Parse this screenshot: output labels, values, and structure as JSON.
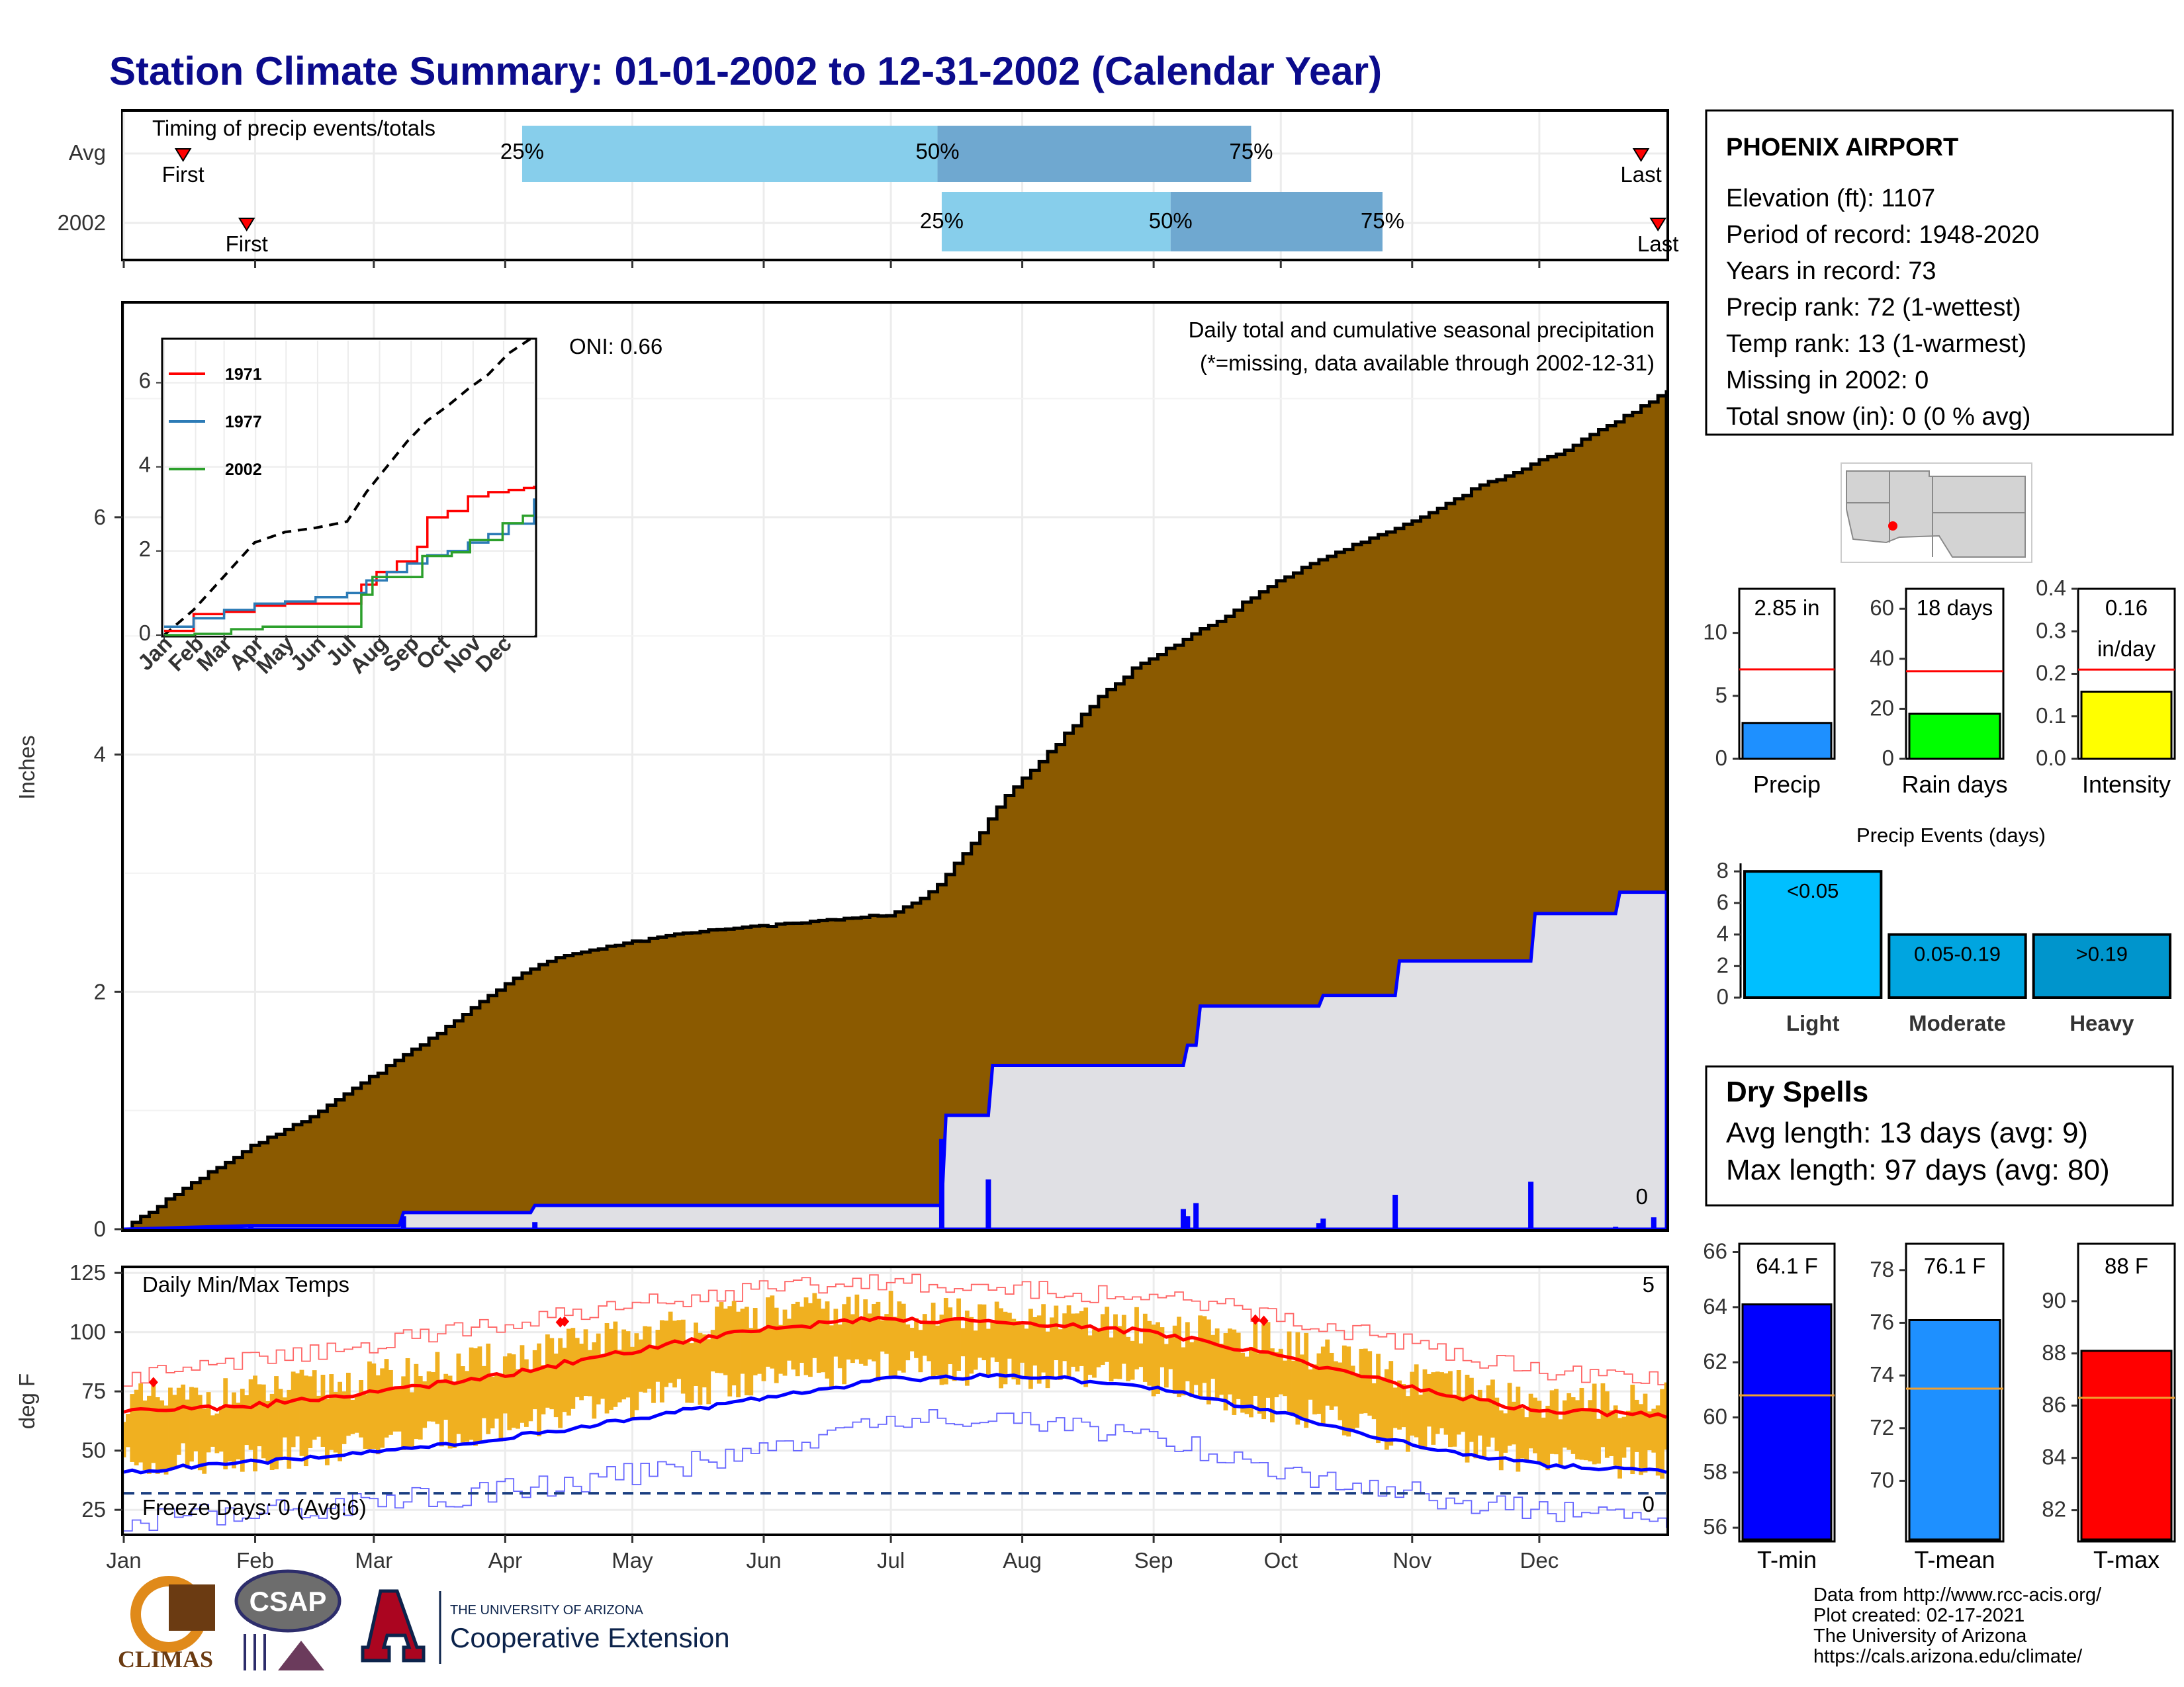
{
  "title": "Station Climate Summary: 01-01-2002 to 12-31-2002 (Calendar Year)",
  "colors": {
    "title": "#0b0b8c",
    "cum": "#8b5a00",
    "avgcum": "#e0e0e4",
    "daily": "#0000ff",
    "q1": "#87ceeb",
    "q2": "#6fa8d0",
    "red": "#ff0000",
    "yellow": "#f0b020",
    "tmin": "#0000ff",
    "tmean": "#1e90ff",
    "tmax": "#ff0000",
    "rain": "#00ff00",
    "intensity": "#ffff00",
    "precip": "#1e90ff",
    "events": [
      "#00bfff",
      "#00a5e0",
      "#0095cc"
    ],
    "dry": "#a52a2a"
  },
  "months": [
    "Jan",
    "Feb",
    "Mar",
    "Apr",
    "May",
    "Jun",
    "Jul",
    "Aug",
    "Sep",
    "Oct",
    "Nov",
    "Dec"
  ],
  "timing": {
    "label": "Timing of precip events/totals",
    "rows": [
      "Avg",
      "2002"
    ],
    "pct_labels": [
      "25%",
      "50%",
      "75%"
    ],
    "first_label": "First",
    "last_label": "Last",
    "chart_data": {
      "type": "table",
      "x_unit": "day of year",
      "series": [
        {
          "name": "Avg",
          "first": 15,
          "p25": 95,
          "p50": 193,
          "p75": 267,
          "last": 359
        },
        {
          "name": "2002",
          "first": 30,
          "p25": 194,
          "p50": 248,
          "p75": 298,
          "last": 363
        }
      ]
    }
  },
  "precip": {
    "title": "Daily total and cumulative seasonal precipitation",
    "missing_note": "(*=missing, data available through 2002-12-31)",
    "ylabel": "Inches",
    "oni": "ONI: 0.66",
    "zero_count": "0",
    "chart_data": {
      "type": "area",
      "ylim": [
        0,
        7.8
      ],
      "yticks": [
        0,
        2,
        4,
        6
      ],
      "avg_cumulative": {
        "name": "Avg",
        "x": [
          1,
          15,
          31,
          45,
          60,
          75,
          90,
          100,
          110,
          120,
          135,
          150,
          165,
          181,
          190,
          194,
          200,
          210,
          220,
          230,
          240,
          250,
          260,
          270,
          280,
          290,
          300,
          310,
          320,
          330,
          340,
          350,
          360,
          365
        ],
        "y": [
          0,
          0.35,
          0.7,
          0.95,
          1.3,
          1.65,
          2.05,
          2.25,
          2.35,
          2.42,
          2.5,
          2.55,
          2.6,
          2.65,
          2.8,
          2.95,
          3.2,
          3.7,
          4.05,
          4.45,
          4.75,
          4.95,
          5.15,
          5.4,
          5.6,
          5.75,
          5.9,
          6.05,
          6.25,
          6.4,
          6.55,
          6.75,
          6.95,
          7.08
        ]
      },
      "cumulative_2002": {
        "name": "2002",
        "x": [
          1,
          31,
          66,
          67,
          97,
          98,
          194,
          195,
          205,
          206,
          251,
          252,
          254,
          255,
          283,
          284,
          301,
          302,
          333,
          334,
          353,
          354,
          365
        ],
        "y": [
          0,
          0.03,
          0.03,
          0.14,
          0.14,
          0.2,
          0.2,
          0.96,
          0.96,
          1.38,
          1.38,
          1.55,
          1.55,
          1.88,
          1.88,
          1.97,
          1.97,
          2.26,
          2.26,
          2.66,
          2.66,
          2.84,
          2.84
        ]
      },
      "daily_2002": {
        "name": "2002 daily",
        "x": [
          31,
          67,
          98,
          194,
          205,
          251,
          252,
          254,
          283,
          284,
          301,
          333,
          353,
          362
        ],
        "y": [
          0.03,
          0.11,
          0.06,
          0.76,
          0.42,
          0.17,
          0.11,
          0.22,
          0.05,
          0.09,
          0.29,
          0.4,
          0.02,
          0.1
        ]
      }
    },
    "inset": {
      "series_labels": [
        "1971",
        "1977",
        "2002"
      ],
      "series_colors": [
        "#ff0000",
        "#2c7bb6",
        "#2ca02c"
      ],
      "month_labels": [
        "Jan",
        "Feb",
        "Mar",
        "Apr",
        "May",
        "Jun",
        "Jul",
        "Aug",
        "Sep",
        "Oct",
        "Nov",
        "Dec"
      ],
      "chart_data": {
        "type": "line",
        "ylim": [
          0,
          7
        ],
        "yticks": [
          0,
          2,
          4,
          6
        ],
        "x_unit": "day of year",
        "series": [
          {
            "name": "Avg (dashed)",
            "x": [
              1,
              30,
              60,
              90,
              120,
              150,
              181,
              200,
              220,
              240,
              260,
              280,
              300,
              320,
              340,
              365
            ],
            "y": [
              0,
              0.6,
              1.4,
              2.2,
              2.45,
              2.55,
              2.7,
              3.4,
              4.0,
              4.6,
              5.1,
              5.45,
              5.85,
              6.2,
              6.7,
              7.1
            ]
          },
          {
            "name": "1971",
            "x": [
              1,
              30,
              60,
              90,
              120,
              150,
              181,
              195,
              210,
              230,
              250,
              260,
              280,
              300,
              320,
              340,
              355,
              365
            ],
            "y": [
              0.1,
              0.5,
              0.55,
              0.7,
              0.75,
              0.75,
              0.75,
              1.2,
              1.5,
              1.75,
              2.1,
              2.8,
              2.95,
              3.3,
              3.4,
              3.45,
              3.5,
              3.55
            ]
          },
          {
            "name": "1977",
            "x": [
              1,
              30,
              60,
              90,
              120,
              150,
              181,
              200,
              220,
              240,
              260,
              280,
              300,
              320,
              340,
              365
            ],
            "y": [
              0.2,
              0.4,
              0.6,
              0.75,
              0.8,
              0.9,
              1.0,
              1.3,
              1.5,
              1.7,
              1.9,
              2.0,
              2.2,
              2.4,
              2.65,
              3.25
            ]
          },
          {
            "name": "2002",
            "x": [
              1,
              31,
              66,
              67,
              97,
              98,
              194,
              195,
              205,
              206,
              251,
              255,
              284,
              302,
              334,
              354,
              365
            ],
            "y": [
              0,
              0.03,
              0.03,
              0.14,
              0.14,
              0.2,
              0.2,
              0.96,
              0.96,
              1.38,
              1.38,
              1.88,
              1.97,
              2.26,
              2.66,
              2.84,
              2.84
            ]
          }
        ]
      }
    }
  },
  "temps": {
    "label": "Daily Min/Max Temps",
    "ylabel": "deg F",
    "record_hi_count": "5",
    "record_lo_count": "0",
    "freeze": "Freeze Days: 0 (Avg:6)",
    "chart_data": {
      "type": "line",
      "ylim": [
        15,
        127
      ],
      "yticks": [
        25,
        50,
        75,
        100,
        125
      ],
      "freeze_line": 32,
      "x_unit": "day of year",
      "avg_max": {
        "x": [
          1,
          31,
          59,
          90,
          120,
          151,
          181,
          212,
          243,
          273,
          304,
          334,
          365
        ],
        "y": [
          66,
          69,
          74,
          82,
          92,
          101,
          106,
          104,
          100,
          90,
          77,
          67,
          65
        ]
      },
      "avg_min": {
        "x": [
          1,
          31,
          59,
          90,
          120,
          151,
          181,
          212,
          243,
          273,
          304,
          334,
          365
        ],
        "y": [
          41,
          45,
          49,
          55,
          63,
          72,
          80,
          82,
          77,
          66,
          53,
          44,
          41
        ]
      },
      "record_high": {
        "x": [
          1,
          31,
          59,
          90,
          120,
          151,
          181,
          212,
          243,
          273,
          304,
          334,
          365
        ],
        "y": [
          80,
          88,
          95,
          103,
          112,
          118,
          122,
          118,
          115,
          107,
          95,
          84,
          80
        ]
      },
      "record_low": {
        "x": [
          1,
          31,
          59,
          90,
          120,
          151,
          181,
          212,
          243,
          273,
          304,
          334,
          365
        ],
        "y": [
          20,
          24,
          28,
          33,
          40,
          50,
          62,
          64,
          56,
          42,
          32,
          24,
          22
        ]
      },
      "obs_max": {
        "x": [
          1,
          31,
          59,
          90,
          120,
          151,
          181,
          212,
          243,
          273,
          304,
          334,
          365
        ],
        "y": [
          70,
          74,
          80,
          88,
          99,
          108,
          110,
          105,
          103,
          96,
          80,
          70,
          72
        ]
      },
      "obs_min": {
        "x": [
          1,
          31,
          59,
          90,
          120,
          151,
          181,
          212,
          243,
          273,
          304,
          334,
          365
        ],
        "y": [
          45,
          48,
          52,
          60,
          70,
          80,
          86,
          82,
          80,
          68,
          55,
          46,
          44
        ]
      },
      "record_days": [
        8,
        104,
        105,
        268,
        270
      ]
    }
  },
  "station": {
    "name": "PHOENIX AIRPORT",
    "lines": [
      "Elevation (ft): 1107",
      "Period of record: 1948-2020",
      "Years in record: 73",
      "Precip rank: 72 (1-wettest)",
      "Temp rank: 13 (1-warmest)",
      "Missing in 2002: 0",
      "Total snow (in): 0 (0 % avg)"
    ]
  },
  "mini": {
    "precip": {
      "label": "Precip",
      "value_label": "2.85 in",
      "value": 2.85,
      "avg": 7.1,
      "ylim": [
        0,
        13.5
      ],
      "yticks": [
        0,
        5,
        10
      ]
    },
    "rain_days": {
      "label": "Rain days",
      "value_label": "18 days",
      "value": 18,
      "avg": 35,
      "ylim": [
        0,
        68
      ],
      "yticks": [
        0,
        20,
        40,
        60
      ]
    },
    "intensity": {
      "label": "Intensity",
      "value_label": "0.16",
      "value_label2": "in/day",
      "value": 0.158,
      "avg": 0.21,
      "ylim": [
        0,
        0.4
      ],
      "yticks": [
        "0.0",
        "0.1",
        "0.2",
        "0.3",
        "0.4"
      ]
    }
  },
  "events": {
    "title": "Precip Events (days)",
    "chart_data": {
      "type": "bar",
      "categories": [
        "Light",
        "Moderate",
        "Heavy"
      ],
      "bar_labels": [
        "<0.05",
        "0.05-0.19",
        ">0.19"
      ],
      "values": [
        8,
        4,
        4
      ],
      "ylim": [
        0,
        8.3
      ],
      "yticks": [
        0,
        2,
        4,
        6,
        8
      ]
    }
  },
  "dry": {
    "title": "Dry Spells",
    "avg_line": "Avg length: 13 days (avg: 9)",
    "max_line": "Max length: 97 days (avg: 80)"
  },
  "temp_bars": {
    "tmin": {
      "label": "T-min",
      "value_label": "64.1 F",
      "value": 64.1,
      "avg": 60.8,
      "ylim": [
        55.5,
        66.3
      ],
      "yticks": [
        56,
        58,
        60,
        62,
        64,
        66
      ]
    },
    "tmean": {
      "label": "T-mean",
      "value_label": "76.1 F",
      "value": 76.1,
      "avg": 73.5,
      "ylim": [
        67.7,
        79
      ],
      "yticks": [
        70,
        72,
        74,
        76,
        78
      ]
    },
    "tmax": {
      "label": "T-max",
      "value_label": "88 F",
      "value": 88.1,
      "avg": 86.3,
      "ylim": [
        80.8,
        92.2
      ],
      "yticks": [
        82,
        84,
        86,
        88,
        90
      ]
    }
  },
  "credits": [
    "Data from http://www.rcc-acis.org/",
    "Plot created: 02-17-2021",
    "The University of Arizona",
    "https://cals.arizona.edu/climate/"
  ],
  "logos": {
    "climas": "CLIMAS",
    "csap": "CSAP",
    "ua_small": "THE UNIVERSITY OF ARIZONA",
    "ua_big": "Cooperative Extension"
  }
}
